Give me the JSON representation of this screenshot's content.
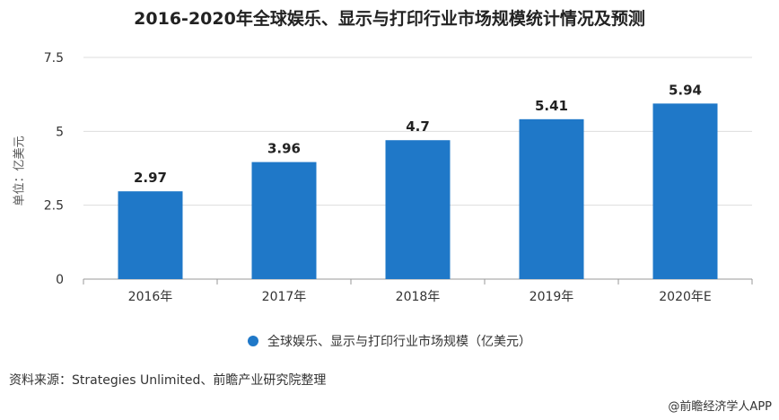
{
  "colors": {
    "bar": "#1f78c8",
    "axis": "#999999",
    "grid": "#dddddd",
    "text": "#333333"
  },
  "source_text": "资料来源：Strategies Unlimited、前瞻产业研究院整理",
  "credit_text": "@前瞻经济学人APP",
  "chart_data": {
    "type": "bar",
    "title": "2016-2020年全球娱乐、显示与打印行业市场规模统计情况及预测",
    "ylabel": "单位：亿美元",
    "xlabel": "",
    "categories": [
      "2016年",
      "2017年",
      "2018年",
      "2019年",
      "2020年E"
    ],
    "series": [
      {
        "name": "全球娱乐、显示与打印行业市场规模（亿美元）",
        "values": [
          2.97,
          3.96,
          4.7,
          5.41,
          5.94
        ],
        "labels": [
          "2.97",
          "3.96",
          "4.7",
          "5.41",
          "5.94"
        ]
      }
    ],
    "ylim": [
      0,
      7.5
    ],
    "yticks": [
      0,
      2.5,
      5,
      7.5
    ],
    "ytick_labels": [
      "0",
      "2.5",
      "5",
      "7.5"
    ],
    "grid": true,
    "legend_position": "bottom"
  }
}
